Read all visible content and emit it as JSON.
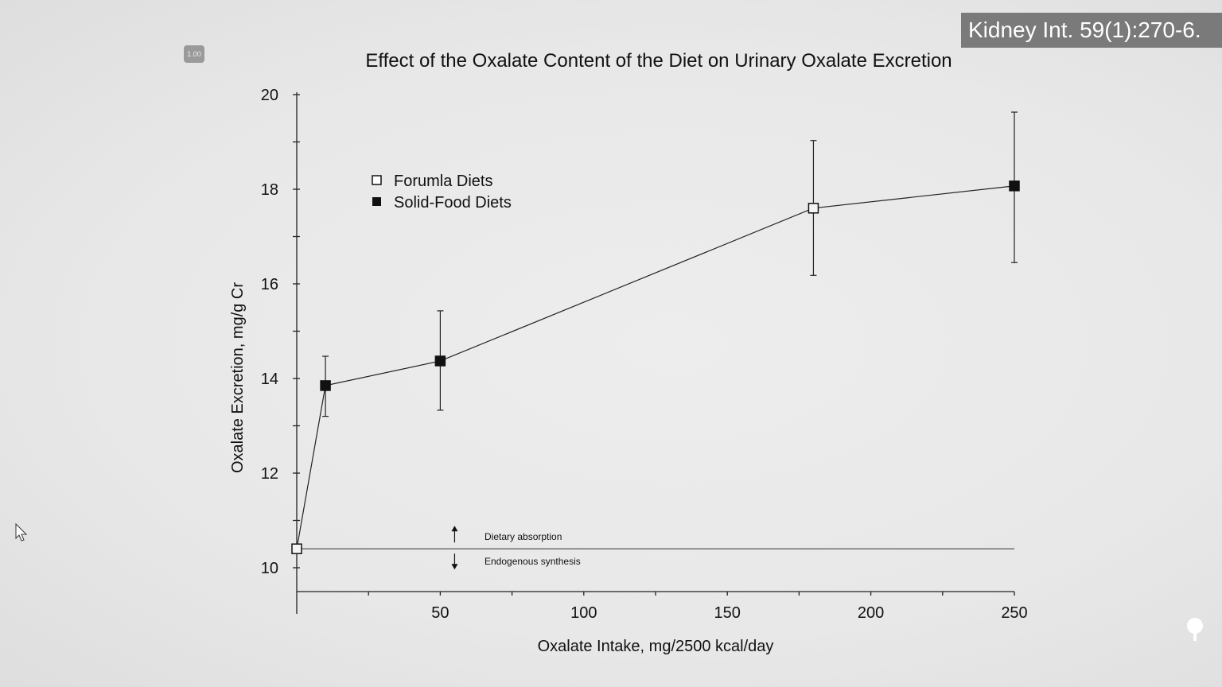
{
  "citation": "Kidney Int. 59(1):270-6.",
  "playback_speed": "1.00",
  "chart_data": {
    "type": "line",
    "title": "Effect of the Oxalate Content of the Diet on Urinary Oxalate Excretion",
    "xlabel": "Oxalate Intake, mg/2500 kcal/day",
    "ylabel": "Oxalate Excretion, mg/g Cr",
    "xlim": [
      0,
      250
    ],
    "ylim": [
      9.5,
      20
    ],
    "xticks": [
      50,
      100,
      150,
      200,
      250
    ],
    "yticks": [
      10,
      12,
      14,
      16,
      18,
      20
    ],
    "grid": false,
    "legend_position": "top-left",
    "legend": [
      {
        "label": "Forumla Diets",
        "marker": "open-square"
      },
      {
        "label": "Solid-Food Diets",
        "marker": "filled-square"
      }
    ],
    "points": [
      {
        "x": 0,
        "y": 10.4,
        "marker": "open-square"
      },
      {
        "x": 10,
        "y": 13.85,
        "err_low": 13.2,
        "err_high": 14.47,
        "marker": "filled-square"
      },
      {
        "x": 50,
        "y": 14.37,
        "err_low": 13.33,
        "err_high": 15.43,
        "marker": "filled-square"
      },
      {
        "x": 180,
        "y": 17.6,
        "err_low": 16.18,
        "err_high": 19.03,
        "marker": "open-square"
      },
      {
        "x": 250,
        "y": 18.07,
        "err_low": 16.45,
        "err_high": 19.63,
        "marker": "filled-square"
      }
    ],
    "reference_line": {
      "y": 10.4,
      "above_label": "Dietary absorption",
      "below_label": "Endogenous synthesis",
      "arrow_x": 55
    }
  }
}
